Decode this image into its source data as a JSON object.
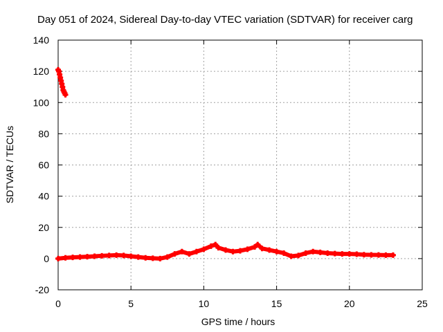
{
  "chart_data": {
    "type": "scatter",
    "title": "Day 051 of 2024, Sidereal Day-to-day VTEC variation (SDTVAR) for receiver carg",
    "xlabel": "GPS time / hours",
    "ylabel": "SDTVAR / TECUs",
    "xlim": [
      0,
      25
    ],
    "ylim": [
      -20,
      140
    ],
    "x_ticks": [
      0,
      5,
      10,
      15,
      20,
      25
    ],
    "y_ticks": [
      -20,
      0,
      20,
      40,
      60,
      80,
      100,
      120,
      140
    ],
    "x_tick_labels": [
      "0",
      "5",
      "10",
      "15",
      "20",
      "25"
    ],
    "y_tick_labels": [
      "-20",
      "0",
      "20",
      "40",
      "60",
      "80",
      "100",
      "120",
      "140"
    ],
    "grid": true,
    "colors": {
      "series": "#ff0000",
      "grid": "#a0a0a0",
      "axis": "#000000"
    },
    "series": [
      {
        "name": "SDTVAR",
        "marker": "plus",
        "x": [
          0.0,
          0.05,
          0.1,
          0.15,
          0.2,
          0.25,
          0.3,
          0.35,
          0.4,
          0.45,
          0.5,
          0.0,
          0.5,
          1.0,
          1.5,
          2.0,
          2.5,
          3.0,
          3.5,
          4.0,
          4.5,
          5.0,
          5.5,
          6.0,
          6.5,
          7.0,
          7.5,
          8.0,
          8.5,
          9.0,
          9.5,
          10.0,
          10.5,
          10.8,
          11.0,
          11.5,
          12.0,
          12.5,
          13.0,
          13.5,
          13.7,
          14.0,
          14.5,
          15.0,
          15.5,
          16.0,
          16.5,
          17.0,
          17.5,
          18.0,
          18.5,
          19.0,
          19.5,
          20.0,
          20.5,
          21.0,
          21.5,
          22.0,
          22.5,
          23.0
        ],
        "y": [
          121,
          120,
          118,
          116,
          114,
          112,
          110,
          108,
          107,
          106,
          105,
          0,
          0.5,
          0.8,
          1.0,
          1.2,
          1.5,
          1.8,
          2.0,
          2.2,
          2.0,
          1.5,
          1.0,
          0.5,
          0.2,
          0.0,
          1.0,
          3.0,
          4.5,
          3.0,
          4.5,
          6.0,
          8.0,
          9.0,
          7.0,
          5.5,
          4.5,
          5.0,
          6.0,
          7.5,
          9.0,
          6.5,
          5.5,
          4.5,
          3.5,
          1.5,
          2.0,
          3.5,
          4.5,
          4.0,
          3.5,
          3.2,
          3.0,
          3.0,
          2.8,
          2.5,
          2.4,
          2.3,
          2.2,
          2.2
        ]
      }
    ]
  }
}
